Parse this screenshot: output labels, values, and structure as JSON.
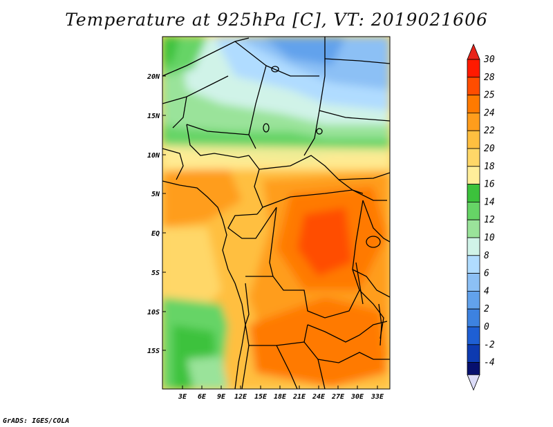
{
  "title": "Temperature at 925hPa [C], VT: 2019021606",
  "footer": "GrADS: IGES/COLA",
  "lat_labels": [
    "20N",
    "15N",
    "10N",
    "5N",
    "EQ",
    "5S",
    "10S",
    "15S"
  ],
  "lon_labels": [
    "3E",
    "6E",
    "9E",
    "12E",
    "15E",
    "18E",
    "21E",
    "24E",
    "27E",
    "30E",
    "33E"
  ],
  "colorbar": {
    "labels": [
      "30",
      "28",
      "25",
      "24",
      "22",
      "20",
      "18",
      "16",
      "14",
      "12",
      "10",
      "8",
      "6",
      "4",
      "2",
      "0",
      "-2",
      "-4"
    ],
    "colors": [
      "#ff1a00",
      "#ff4d00",
      "#ff7a00",
      "#ff9d1c",
      "#ffbf40",
      "#ffd768",
      "#ffee9a",
      "#3cc23c",
      "#66d466",
      "#9ae39a",
      "#d0f3e8",
      "#b0dcff",
      "#8cc0f5",
      "#62a2ec",
      "#3d82e0",
      "#1e5fd4",
      "#0d3ab0",
      "#07106e"
    ],
    "top_arrow_color": "#e8241a",
    "bottom_arrow_color": "#dcdcf8"
  }
}
